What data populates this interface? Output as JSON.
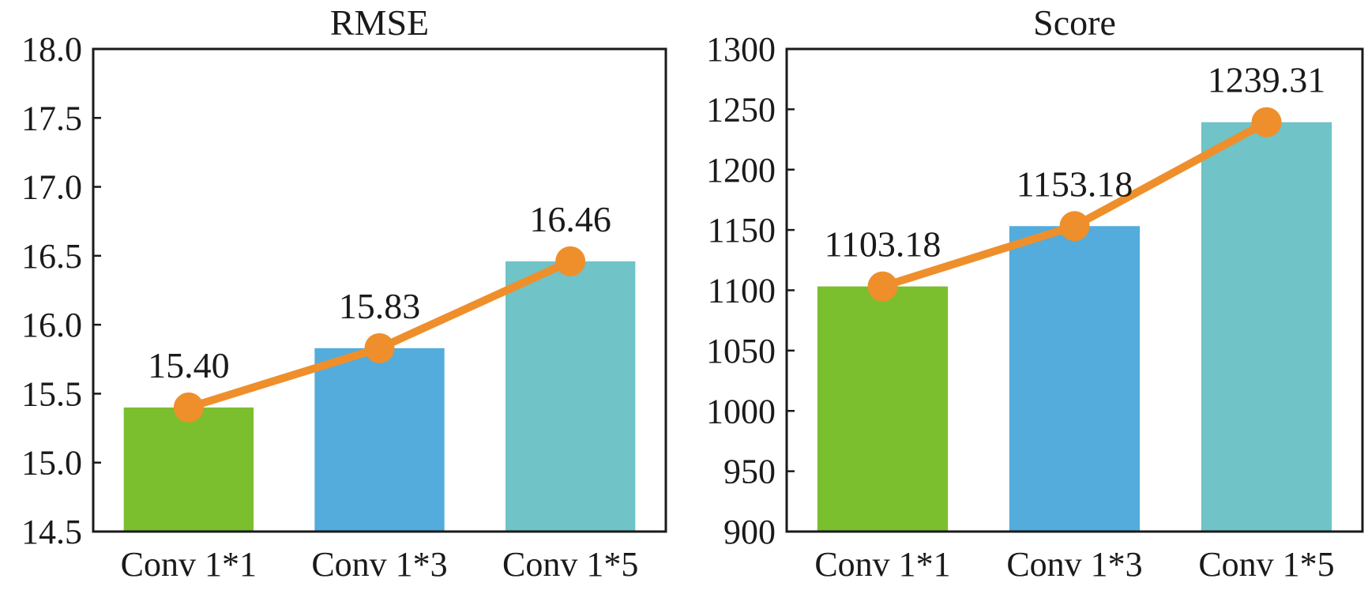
{
  "chart_data": [
    {
      "type": "bar",
      "title": "RMSE",
      "categories": [
        "Conv 1*1",
        "Conv 1*3",
        "Conv 1*5"
      ],
      "values": [
        15.4,
        15.83,
        16.46
      ],
      "value_labels": [
        "15.40",
        "15.83",
        "16.46"
      ],
      "ylim": [
        14.5,
        18.0
      ],
      "yticks": [
        14.5,
        15.0,
        15.5,
        16.0,
        16.5,
        17.0,
        17.5,
        18.0
      ],
      "ytick_labels": [
        "14.5",
        "15.0",
        "15.5",
        "16.0",
        "16.5",
        "17.0",
        "17.5",
        "18.0"
      ],
      "xlabel": "",
      "ylabel": "",
      "overlay": "line-with-markers",
      "grid": false
    },
    {
      "type": "bar",
      "title": "Score",
      "categories": [
        "Conv 1*1",
        "Conv 1*3",
        "Conv 1*5"
      ],
      "values": [
        1103.18,
        1153.18,
        1239.31
      ],
      "value_labels": [
        "1103.18",
        "1153.18",
        "1239.31"
      ],
      "ylim": [
        900,
        1300
      ],
      "yticks": [
        900,
        950,
        1000,
        1050,
        1100,
        1150,
        1200,
        1250,
        1300
      ],
      "ytick_labels": [
        "900",
        "950",
        "1000",
        "1050",
        "1100",
        "1150",
        "1200",
        "1250",
        "1300"
      ],
      "xlabel": "",
      "ylabel": "",
      "overlay": "line-with-markers",
      "grid": false
    }
  ],
  "colors": {
    "bars": [
      "#7bbf2e",
      "#53acdc",
      "#70c3c6"
    ],
    "line": "#ee8f2c",
    "axis": "#1a1a1a"
  }
}
